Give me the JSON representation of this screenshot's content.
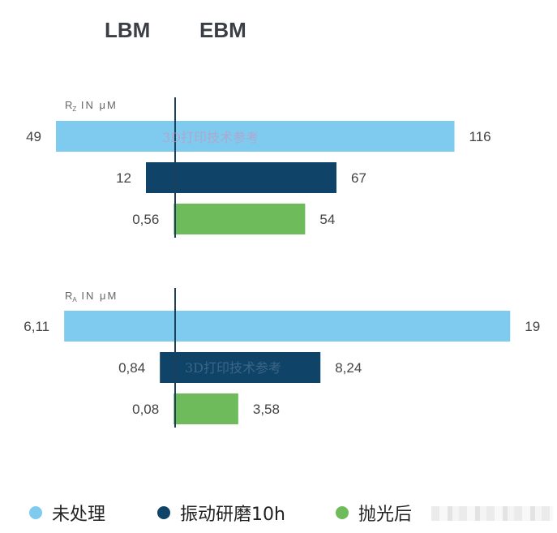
{
  "headers": {
    "left": "LBM",
    "right": "EBM"
  },
  "colors": {
    "untreated": "#7fcbef",
    "vibration": "#0f4468",
    "polished": "#6dbb5a",
    "axis": "#1f3f5a"
  },
  "chart_data": [
    {
      "type": "bar",
      "orientation": "horizontal-diverging",
      "axis_label_main": "R",
      "axis_label_sub": "Z",
      "axis_label_suffix": " IN μM",
      "categories": [
        "未处理",
        "振动研磨10h",
        "抛光后"
      ],
      "series": [
        {
          "name": "LBM",
          "values": [
            49,
            12,
            0.56
          ],
          "labels": [
            "49",
            "12",
            "0,56"
          ]
        },
        {
          "name": "EBM",
          "values": [
            116,
            67,
            54
          ],
          "labels": [
            "116",
            "67",
            "54"
          ]
        }
      ]
    },
    {
      "type": "bar",
      "orientation": "horizontal-diverging",
      "axis_label_main": "R",
      "axis_label_sub": "A",
      "axis_label_suffix": " IN μM",
      "categories": [
        "未处理",
        "振动研磨10h",
        "抛光后"
      ],
      "series": [
        {
          "name": "LBM",
          "values": [
            6.11,
            0.84,
            0.08
          ],
          "labels": [
            "6,11",
            "0,84",
            "0,08"
          ]
        },
        {
          "name": "EBM",
          "values": [
            19,
            8.24,
            3.58
          ],
          "labels": [
            "19",
            "8,24",
            "3,58"
          ]
        }
      ]
    }
  ],
  "legend": [
    {
      "label": "未处理",
      "color": "#7fcbef"
    },
    {
      "label": "振动研磨10h",
      "color": "#0f4468"
    },
    {
      "label": "抛光后",
      "color": "#6dbb5a"
    }
  ],
  "watermark": "3D打印技术参考"
}
